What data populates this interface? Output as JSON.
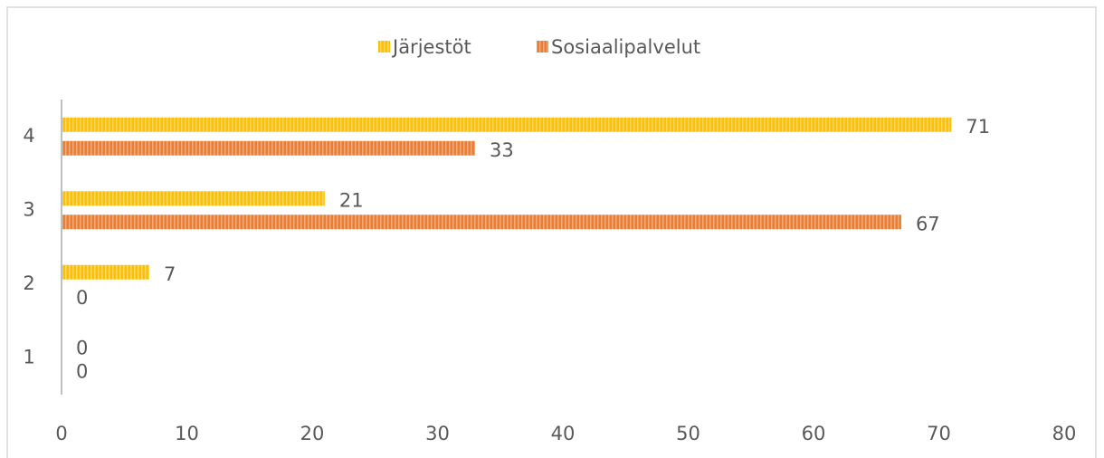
{
  "chart_data": {
    "type": "barh",
    "categories": [
      "1",
      "2",
      "3",
      "4"
    ],
    "series": [
      {
        "name": "Järjestöt",
        "color": "#ffc000",
        "values": [
          0,
          7,
          21,
          71
        ]
      },
      {
        "name": "Sosiaalipalvelut",
        "color": "#ed7d31",
        "values": [
          0,
          0,
          67,
          33
        ]
      }
    ],
    "xlim": [
      0,
      80
    ],
    "xticks": [
      0,
      10,
      20,
      30,
      40,
      50,
      60,
      70,
      80
    ],
    "legend": "top",
    "grid": false
  }
}
